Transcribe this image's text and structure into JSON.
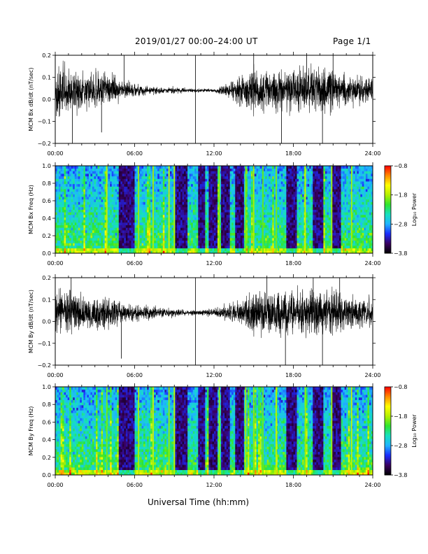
{
  "header": {
    "title": "2019/01/27   00:00–24:00 UT",
    "page": "Page 1/1"
  },
  "x_axis_title": "Universal Time (hh:mm)",
  "colors": {
    "trace": "#000000",
    "axes": "#000000",
    "colormap": [
      "#000000",
      "#3a0060",
      "#1a2cff",
      "#1fb4ff",
      "#16e0c0",
      "#2fe52f",
      "#b4f000",
      "#ffff00",
      "#ff8a00",
      "#ff0000"
    ]
  },
  "chart_data": [
    {
      "type": "line",
      "ylabel": "MCM Bx dB/dt (nT/sec)",
      "xticks": [
        "00:00",
        "06:00",
        "12:00",
        "18:00",
        "24:00"
      ],
      "yticks": [
        "0.2",
        "0.1",
        "0.0",
        "−0.1",
        "−0.2"
      ],
      "xlim": [
        0,
        24
      ],
      "ylim": [
        -0.2,
        0.2
      ],
      "baseline": 0.04,
      "activity": [
        [
          0,
          0.09
        ],
        [
          1.2,
          0.09
        ],
        [
          2.2,
          0.06
        ],
        [
          3.2,
          0.07
        ],
        [
          4.2,
          0.06
        ],
        [
          5.2,
          0.03
        ],
        [
          6.2,
          0.025
        ],
        [
          7.2,
          0.015
        ],
        [
          8.0,
          0.012
        ],
        [
          9.0,
          0.012
        ],
        [
          10.0,
          0.008
        ],
        [
          11.0,
          0.006
        ],
        [
          12.0,
          0.007
        ],
        [
          13.0,
          0.025
        ],
        [
          14.0,
          0.05
        ],
        [
          15.0,
          0.08
        ],
        [
          16.0,
          0.07
        ],
        [
          17.0,
          0.07
        ],
        [
          18.0,
          0.08
        ],
        [
          19.0,
          0.09
        ],
        [
          20.0,
          0.085
        ],
        [
          21.0,
          0.08
        ],
        [
          22.0,
          0.06
        ],
        [
          23.0,
          0.05
        ],
        [
          24.0,
          0.045
        ]
      ],
      "spikes": [
        [
          1.3,
          -0.2
        ],
        [
          3.5,
          -0.15
        ],
        [
          5.2,
          0.2
        ],
        [
          10.6,
          0.2
        ],
        [
          10.6,
          -0.2
        ],
        [
          15.0,
          0.2
        ],
        [
          17.1,
          -0.2
        ],
        [
          19.0,
          0.2
        ],
        [
          20.2,
          -0.2
        ],
        [
          21.0,
          0.2
        ]
      ]
    },
    {
      "type": "heatmap",
      "ylabel": "MCM Bx Freq (Hz)",
      "xticks": [
        "00:00",
        "06:00",
        "12:00",
        "18:00",
        "24:00"
      ],
      "yticks": [
        "1.0",
        "0.8",
        "0.6",
        "0.4",
        "0.2",
        "0.0"
      ],
      "xlim": [
        0,
        24
      ],
      "ylim": [
        0,
        1
      ],
      "colorbar": {
        "label": "Log₁₀ Power",
        "range": [
          -3.8,
          -0.8
        ],
        "ticks": [
          "−0.8",
          "−1.8",
          "−2.8",
          "−3.8"
        ]
      },
      "dark_bands": [
        [
          4.8,
          6.0
        ],
        [
          9.1,
          10.0
        ],
        [
          10.8,
          11.3
        ],
        [
          11.6,
          12.2
        ],
        [
          12.6,
          13.2
        ],
        [
          13.6,
          14.2
        ],
        [
          17.5,
          18.2
        ],
        [
          19.5,
          20.2
        ],
        [
          21.0,
          21.6
        ]
      ],
      "bright_lines": [
        3.9,
        6.3,
        7.4,
        8.6,
        9.0,
        12.4,
        14.4,
        15.0,
        15.7,
        16.7,
        18.9,
        20.9,
        22.4
      ]
    },
    {
      "type": "line",
      "ylabel": "MCM By dB/dt (nT/sec)",
      "xticks": [
        "00:00",
        "06:00",
        "12:00",
        "18:00",
        "24:00"
      ],
      "yticks": [
        "0.2",
        "0.1",
        "0.0",
        "−0.1",
        "−0.2"
      ],
      "xlim": [
        0,
        24
      ],
      "ylim": [
        -0.2,
        0.2
      ],
      "baseline": 0.04,
      "activity": [
        [
          0,
          0.08
        ],
        [
          1.2,
          0.085
        ],
        [
          2.2,
          0.06
        ],
        [
          3.2,
          0.07
        ],
        [
          4.2,
          0.06
        ],
        [
          5.2,
          0.035
        ],
        [
          6.2,
          0.03
        ],
        [
          7.2,
          0.025
        ],
        [
          8.0,
          0.02
        ],
        [
          9.0,
          0.015
        ],
        [
          10.0,
          0.01
        ],
        [
          11.0,
          0.01
        ],
        [
          12.0,
          0.015
        ],
        [
          13.0,
          0.03
        ],
        [
          14.0,
          0.05
        ],
        [
          15.0,
          0.08
        ],
        [
          16.0,
          0.08
        ],
        [
          17.0,
          0.085
        ],
        [
          18.0,
          0.08
        ],
        [
          19.0,
          0.085
        ],
        [
          20.0,
          0.085
        ],
        [
          21.0,
          0.08
        ],
        [
          22.0,
          0.065
        ],
        [
          23.0,
          0.055
        ],
        [
          24.0,
          0.05
        ]
      ],
      "spikes": [
        [
          1.2,
          0.2
        ],
        [
          5.0,
          -0.17
        ],
        [
          10.6,
          0.2
        ],
        [
          10.6,
          -0.2
        ],
        [
          16.0,
          0.2
        ],
        [
          17.4,
          -0.2
        ],
        [
          19.5,
          0.2
        ],
        [
          20.2,
          -0.2
        ],
        [
          21.5,
          0.2
        ]
      ]
    },
    {
      "type": "heatmap",
      "ylabel": "MCM By Freq (Hz)",
      "xticks": [
        "00:00",
        "06:00",
        "12:00",
        "18:00",
        "24:00"
      ],
      "yticks": [
        "1.0",
        "0.8",
        "0.6",
        "0.4",
        "0.2",
        "0.0"
      ],
      "xlim": [
        0,
        24
      ],
      "ylim": [
        0,
        1
      ],
      "colorbar": {
        "label": "Log₁₀ Power",
        "range": [
          -3.8,
          -0.8
        ],
        "ticks": [
          "−0.8",
          "−1.8",
          "−2.8",
          "−3.8"
        ]
      },
      "dark_bands": [
        [
          4.8,
          6.0
        ],
        [
          9.1,
          10.0
        ],
        [
          10.8,
          11.3
        ],
        [
          11.6,
          12.2
        ],
        [
          12.6,
          13.2
        ],
        [
          13.6,
          14.2
        ],
        [
          17.5,
          18.2
        ],
        [
          19.5,
          20.2
        ],
        [
          21.0,
          21.6
        ]
      ],
      "bright_lines": [
        3.9,
        6.3,
        7.4,
        8.6,
        9.0,
        12.4,
        14.4,
        15.0,
        15.7,
        16.7,
        18.9,
        20.9,
        22.4
      ]
    }
  ]
}
